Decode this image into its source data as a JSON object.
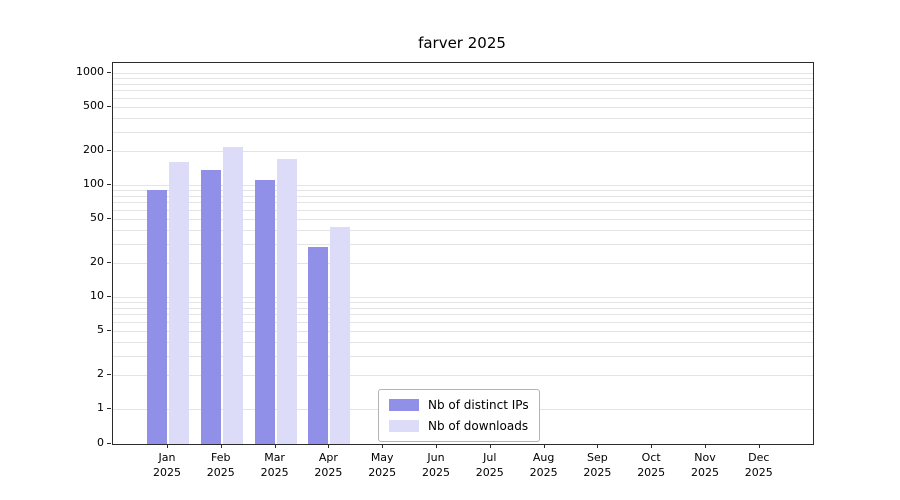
{
  "chart_data": {
    "type": "bar",
    "title": "farver 2025",
    "scale": "symlog",
    "grid": true,
    "legend_position": "inside-bottom-center",
    "ylim": [
      0,
      1000
    ],
    "yticks": [
      0,
      1,
      2,
      5,
      10,
      20,
      50,
      100,
      200,
      500,
      1000
    ],
    "categories": [
      {
        "month": "Jan",
        "year": "2025"
      },
      {
        "month": "Feb",
        "year": "2025"
      },
      {
        "month": "Mar",
        "year": "2025"
      },
      {
        "month": "Apr",
        "year": "2025"
      },
      {
        "month": "May",
        "year": "2025"
      },
      {
        "month": "Jun",
        "year": "2025"
      },
      {
        "month": "Jul",
        "year": "2025"
      },
      {
        "month": "Aug",
        "year": "2025"
      },
      {
        "month": "Sep",
        "year": "2025"
      },
      {
        "month": "Oct",
        "year": "2025"
      },
      {
        "month": "Nov",
        "year": "2025"
      },
      {
        "month": "Dec",
        "year": "2025"
      }
    ],
    "series": [
      {
        "name": "Nb of distinct IPs",
        "color": "#9090e8",
        "values": [
          90,
          135,
          110,
          28,
          0,
          0,
          0,
          0,
          0,
          0,
          0,
          0
        ]
      },
      {
        "name": "Nb of downloads",
        "color": "#dcdcf8",
        "values": [
          160,
          220,
          170,
          42,
          0,
          0,
          0,
          0,
          0,
          0,
          0,
          0
        ]
      }
    ]
  }
}
